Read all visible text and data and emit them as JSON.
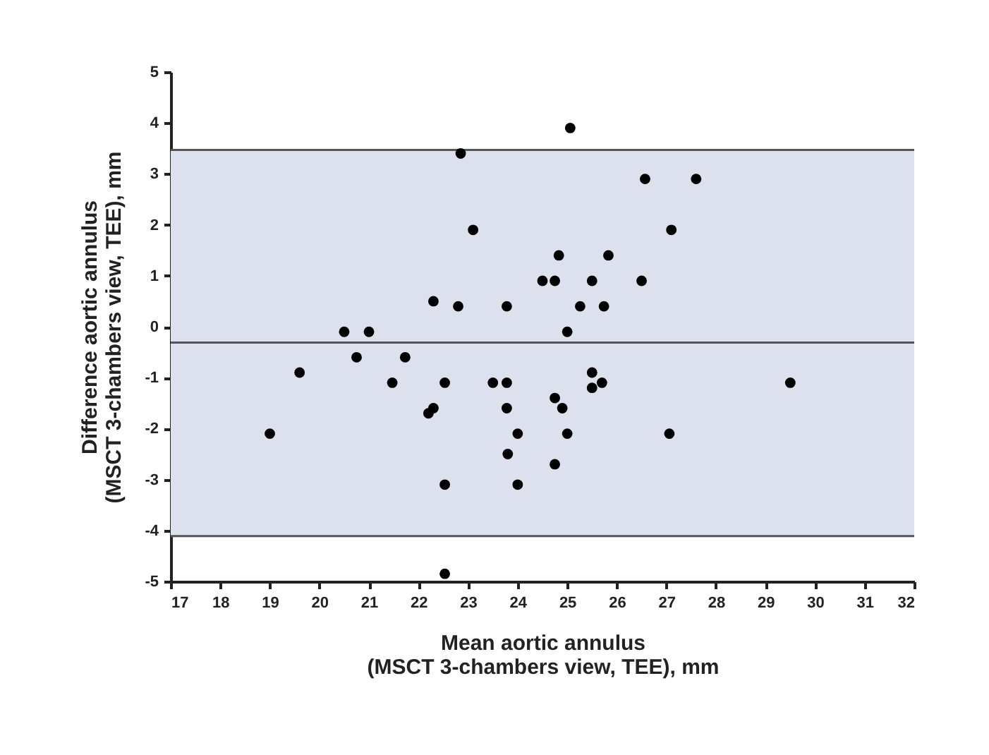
{
  "chart_data": {
    "type": "scatter",
    "xlabel": "Mean aortic annulus\n(MSCT 3-chambers view, TEE), mm",
    "ylabel": "Difference aortic annulus\n(MSCT 3-chambers view, TEE), mm",
    "x": [
      19.0,
      19.6,
      20.5,
      20.75,
      21.0,
      21.47,
      21.73,
      22.2,
      22.3,
      22.3,
      22.53,
      22.53,
      22.53,
      22.8,
      22.85,
      23.1,
      23.5,
      23.78,
      23.78,
      23.78,
      23.8,
      24.0,
      24.0,
      24.5,
      24.75,
      24.75,
      24.75,
      24.83,
      24.9,
      25.06,
      25.0,
      25.0,
      25.26,
      25.5,
      25.5,
      25.5,
      25.7,
      25.74,
      25.83,
      26.5,
      26.57,
      27.06,
      27.1,
      27.6,
      29.5
    ],
    "series": [
      {
        "color": "#000000",
        "values": [
          -2.1,
          -0.9,
          -0.1,
          -0.6,
          -0.1,
          -1.1,
          -0.6,
          -1.7,
          -1.6,
          0.5,
          -1.1,
          -3.1,
          -4.85,
          0.4,
          3.4,
          1.9,
          -1.1,
          -1.1,
          -1.6,
          0.4,
          -2.5,
          -2.1,
          -3.1,
          0.9,
          0.9,
          -1.4,
          -2.7,
          1.4,
          -1.6,
          3.9,
          -0.1,
          -2.1,
          0.4,
          0.9,
          -0.9,
          -1.2,
          -1.1,
          0.4,
          1.4,
          0.9,
          2.9,
          -2.1,
          1.9,
          2.9,
          -1.1
        ]
      }
    ],
    "xlim": [
      17,
      32
    ],
    "xticks": [
      17,
      18,
      19,
      20,
      21,
      22,
      23,
      24,
      25,
      26,
      27,
      28,
      29,
      30,
      31,
      32
    ],
    "ylim": [
      -5,
      5
    ],
    "yticks": [
      -5,
      -4,
      -3,
      -2,
      -1,
      0,
      1,
      2,
      3,
      4,
      5
    ],
    "bands": [
      {
        "axis": "y",
        "from": -4.11,
        "to": 3.47,
        "color": "#dde1ee"
      }
    ],
    "ref_lines": [
      {
        "axis": "y",
        "value": 3.47,
        "color": "#555555"
      },
      {
        "axis": "y",
        "value": -0.31,
        "color": "#555555"
      },
      {
        "axis": "y",
        "value": -4.11,
        "color": "#555555"
      }
    ],
    "marker": "circle",
    "grid": false,
    "legend": false
  }
}
